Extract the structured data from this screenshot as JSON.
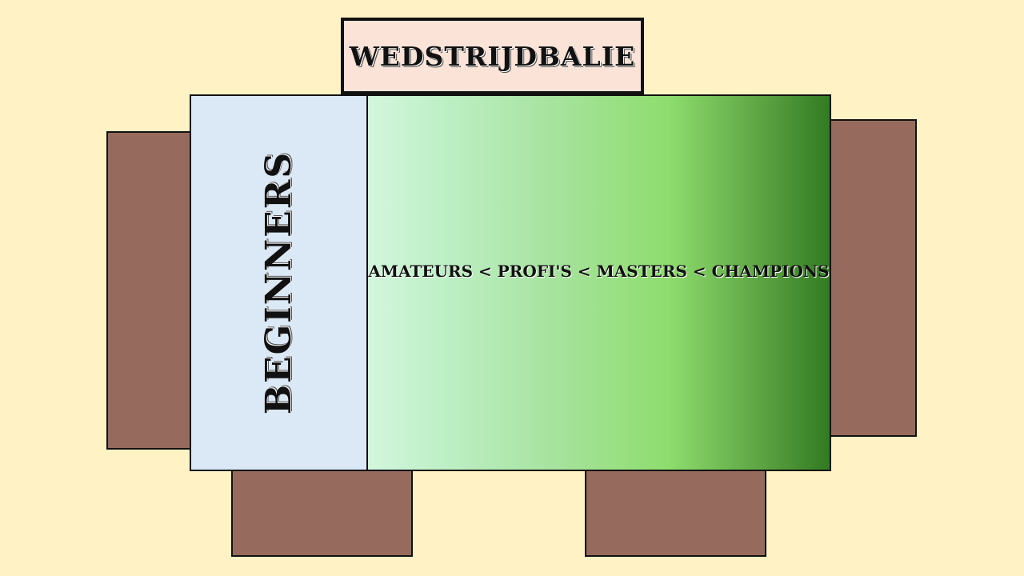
{
  "colors": {
    "background": "#fff2c5",
    "table": "#966b5e",
    "counter": "#fbe3d7",
    "beginners_zone": "#dbe8f6",
    "levels_gradient_start": "#d3f6dc",
    "levels_gradient_end": "#327b22"
  },
  "counter": {
    "label": "WEDSTRIJDBALIE"
  },
  "zones": {
    "beginners": {
      "label": "BEGINNERS"
    },
    "levels": {
      "label": "AMATEURS < PROFI'S < MASTERS < CHAMPIONS"
    }
  }
}
